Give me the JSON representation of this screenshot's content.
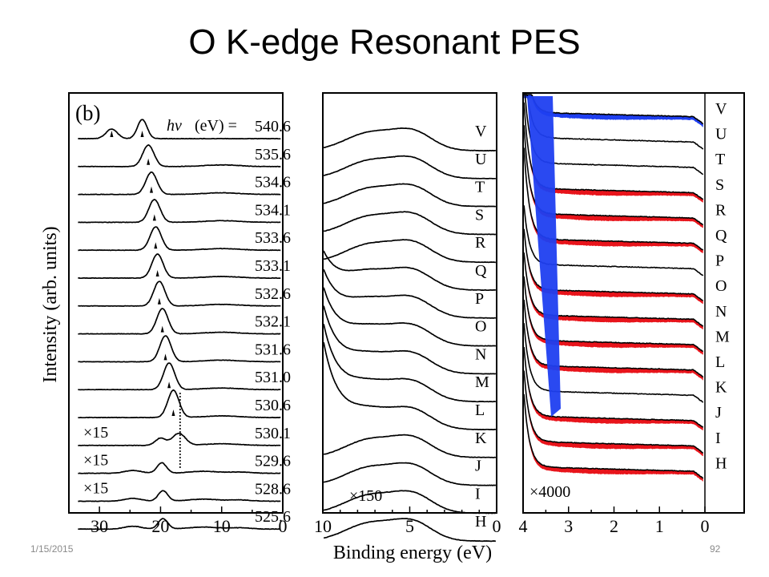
{
  "slide": {
    "title": "O K-edge Resonant PES",
    "footer_date": "1/15/2015",
    "page_number": "92"
  },
  "chart_data": {
    "type": "line",
    "ylabel": "Intensity (arb. units)",
    "xlabel": "Binding energy (eV)",
    "panel_tag": "(b)",
    "photon_energy_header": "(eV) =",
    "panels": [
      {
        "id": "wide",
        "xlim": [
          35,
          0
        ],
        "xticks": [
          "30",
          "20",
          "10",
          "0"
        ],
        "photon_energies_eV": [
          "540.6",
          "535.6",
          "534.6",
          "534.1",
          "533.6",
          "533.1",
          "532.6",
          "532.1",
          "531.6",
          "531.0",
          "530.6",
          "530.1",
          "529.6",
          "528.6",
          "525.6"
        ],
        "scale_labels": [
          {
            "trace": "530.1",
            "text": "×15"
          },
          {
            "trace": "529.6",
            "text": "×15"
          },
          {
            "trace": "528.6",
            "text": "×15"
          }
        ],
        "peak_binding_energy_eV": [
          23.0,
          22.0,
          21.5,
          21.0,
          20.8,
          20.5,
          20.2,
          19.7,
          19.2,
          18.6,
          17.9,
          17.0,
          19.8,
          19.6,
          19.6
        ]
      },
      {
        "id": "valence",
        "xlim": [
          10,
          0
        ],
        "xticks": [
          "10",
          "5",
          "0"
        ],
        "trace_labels": [
          "V",
          "U",
          "T",
          "S",
          "R",
          "Q",
          "P",
          "O",
          "N",
          "M",
          "L",
          "K",
          "J",
          "I",
          "H"
        ],
        "scale_label": "×150"
      },
      {
        "id": "near-edge",
        "xlim": [
          4,
          0
        ],
        "xticks": [
          "4",
          "3",
          "2",
          "1",
          "0"
        ],
        "trace_labels": [
          "V",
          "U",
          "T",
          "S",
          "R",
          "Q",
          "P",
          "O",
          "N",
          "M",
          "L",
          "K",
          "J",
          "I",
          "H"
        ],
        "scale_label": "×4000",
        "colors": {
          "difference_positive": "#e8141b",
          "difference_negative": "#1f3ff0",
          "trace": "#000000"
        }
      }
    ]
  }
}
